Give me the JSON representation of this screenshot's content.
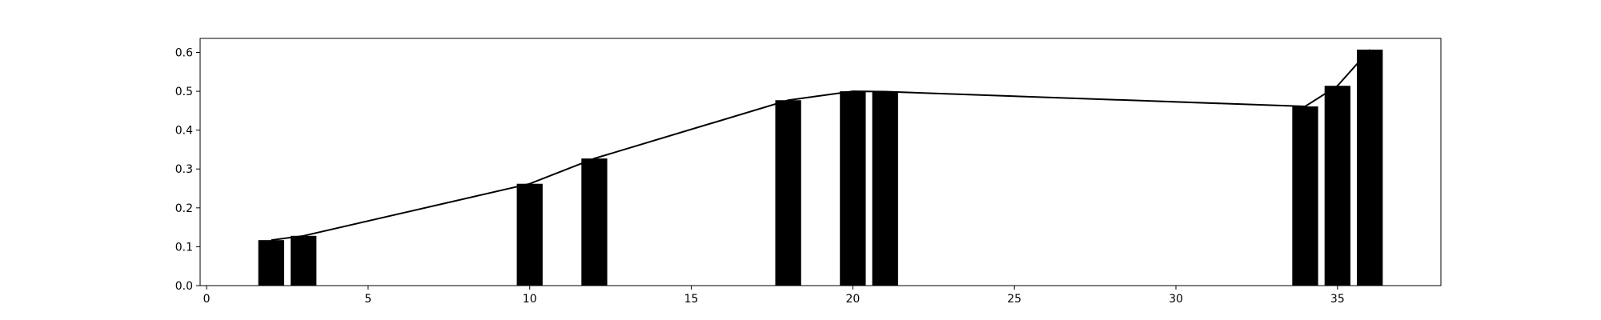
{
  "chart_data": {
    "type": "bar",
    "title": "",
    "xlabel": "",
    "ylabel": "",
    "xlim": [
      -0.2,
      38.2
    ],
    "ylim": [
      0,
      0.636
    ],
    "grid": false,
    "x_ticks": [
      0,
      5,
      10,
      15,
      20,
      25,
      30,
      35
    ],
    "x_tick_labels": [
      "0",
      "5",
      "10",
      "15",
      "20",
      "25",
      "30",
      "35"
    ],
    "y_ticks": [
      0.0,
      0.1,
      0.2,
      0.3,
      0.4,
      0.5,
      0.6
    ],
    "y_tick_labels": [
      "0.0",
      "0.1",
      "0.2",
      "0.3",
      "0.4",
      "0.5",
      "0.6"
    ],
    "bar_width": 0.8,
    "bars": {
      "x": [
        2,
        3,
        10,
        12,
        18,
        20,
        21,
        34,
        35,
        36
      ],
      "values": [
        0.117,
        0.128,
        0.262,
        0.327,
        0.477,
        0.5,
        0.499,
        0.461,
        0.514,
        0.607
      ]
    },
    "line": {
      "x": [
        2,
        3,
        10,
        12,
        18,
        20,
        21,
        34,
        35,
        36
      ],
      "values": [
        0.117,
        0.128,
        0.262,
        0.327,
        0.477,
        0.5,
        0.499,
        0.461,
        0.514,
        0.607
      ]
    },
    "colors": {
      "bars": "#000000",
      "line": "#000000"
    }
  }
}
